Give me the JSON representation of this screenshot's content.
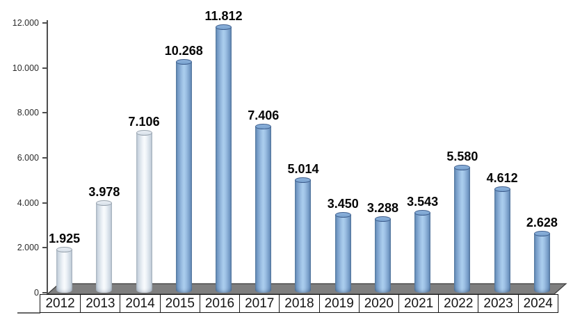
{
  "chart_data": {
    "type": "bar",
    "title": "",
    "xlabel": "",
    "ylabel": "",
    "categories": [
      "2012",
      "2013",
      "2014",
      "2015",
      "2016",
      "2017",
      "2018",
      "2019",
      "2020",
      "2021",
      "2022",
      "2023",
      "2024"
    ],
    "values": [
      1925,
      3978,
      7106,
      10268,
      11812,
      7406,
      5014,
      3450,
      3288,
      3543,
      5580,
      4612,
      2628
    ],
    "value_labels": [
      "1.925",
      "3.978",
      "7.106",
      "10.268",
      "11.812",
      "7.406",
      "5.014",
      "3.450",
      "3.288",
      "3.543",
      "5.580",
      "4.612",
      "2.628"
    ],
    "y_axis": {
      "ylim": [
        0,
        12000
      ],
      "tick_values": [
        0,
        2000,
        4000,
        6000,
        8000,
        10000,
        12000
      ],
      "tick_labels": [
        "0",
        "2.000",
        "4.000",
        "6.000",
        "8.000",
        "10.000",
        "12.000"
      ]
    },
    "grid": false,
    "legend": null,
    "style": {
      "bar_style": "3d-cylinder",
      "pale_years": [
        "2012",
        "2013",
        "2014"
      ],
      "bar_blue_hex": "#8cb3dd",
      "bar_pale_hex": "#edf2f7",
      "floor_hex": "#7f7f7f",
      "axis_hex": "#4d4d4d",
      "value_label_hex": "#050505"
    }
  }
}
